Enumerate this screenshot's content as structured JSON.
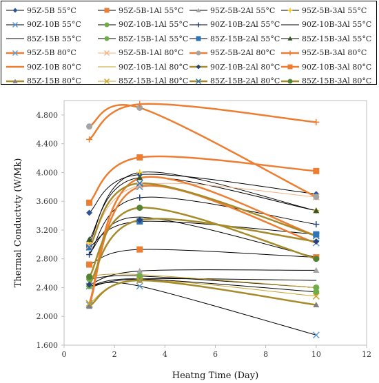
{
  "chart_data": {
    "type": "line",
    "xlabel": "Heatng Time (Day)",
    "ylabel": "Thermal Conductvty (W/Mk)",
    "xlim": [
      0,
      12
    ],
    "ylim": [
      1.6,
      5.0
    ],
    "xticks": [
      0,
      2,
      4,
      6,
      8,
      10,
      12
    ],
    "yticks": [
      1.6,
      2.0,
      2.4,
      2.8,
      3.2,
      3.6,
      4.0,
      4.4,
      4.8
    ],
    "ytick_labels": [
      "1.600",
      "2.000",
      "2.400",
      "2.800",
      "3.200",
      "3.600",
      "4.000",
      "4.400",
      "4.800"
    ],
    "grid": false,
    "legend": "top",
    "x": [
      1,
      3,
      10
    ],
    "series": [
      {
        "name": "95Z-5B 55°C",
        "values": [
          3.44,
          3.97,
          3.7
        ],
        "color": "#000000",
        "marker": "diamond",
        "marker_color": "#2F5597",
        "width": 1
      },
      {
        "name": "95Z-5B-1Al 55°C",
        "values": [
          2.72,
          2.93,
          2.82
        ],
        "color": "#000000",
        "marker": "square",
        "marker_color": "#ED7D31",
        "width": 1
      },
      {
        "name": "95Z-5B-2Al 55°C",
        "values": [
          2.44,
          2.63,
          2.64
        ],
        "color": "#000000",
        "marker": "triangle",
        "marker_color": "#A5A5A5",
        "width": 1
      },
      {
        "name": "95Z-5B-3Al 55°C",
        "values": [
          3.02,
          4.0,
          3.47
        ],
        "color": "#000000",
        "marker": "plus",
        "marker_color": "#FFC000",
        "width": 1
      },
      {
        "name": "90Z-10B 55°C",
        "values": [
          2.42,
          2.42,
          1.74
        ],
        "color": "#000000",
        "marker": "x",
        "marker_color": "#5B9BD5",
        "width": 1
      },
      {
        "name": "90Z-10B-1Al 55°C",
        "values": [
          2.52,
          2.56,
          2.4
        ],
        "color": "#000000",
        "marker": "circle",
        "marker_color": "#70AD47",
        "width": 1
      },
      {
        "name": "90Z-10B-2Al 55°C",
        "values": [
          2.86,
          3.65,
          3.28
        ],
        "color": "#000000",
        "marker": "plus",
        "marker_color": "#264478",
        "width": 1
      },
      {
        "name": "90Z-10B-3Al 55°C",
        "values": [
          2.4,
          2.52,
          2.5
        ],
        "color": "#000000",
        "marker": "none",
        "marker_color": "#000000",
        "width": 1
      },
      {
        "name": "85Z-15B 55°C",
        "values": [
          2.88,
          3.38,
          2.82
        ],
        "color": "#000000",
        "marker": "none",
        "marker_color": "#000000",
        "width": 1
      },
      {
        "name": "85Z-15B-1Al 55°C",
        "values": [
          2.42,
          2.52,
          2.34
        ],
        "color": "#000000",
        "marker": "circle",
        "marker_color": "#70AD47",
        "width": 1
      },
      {
        "name": "85Z-15B-2Al 55°C",
        "values": [
          2.96,
          3.32,
          3.14
        ],
        "color": "#000000",
        "marker": "square",
        "marker_color": "#2E75B6",
        "width": 1
      },
      {
        "name": "85Z-15B-3Al 55°C",
        "values": [
          3.07,
          3.93,
          3.47
        ],
        "color": "#000000",
        "marker": "triangle",
        "marker_color": "#375623",
        "width": 1
      },
      {
        "name": "95Z-5B 80°C",
        "values": [
          2.16,
          3.8,
          3.02
        ],
        "color": "#ED7D31",
        "marker": "x",
        "marker_color": "#5B9BD5",
        "width": 2.5
      },
      {
        "name": "95Z-5B-1Al 80°C",
        "values": [
          2.98,
          3.82,
          3.66
        ],
        "color": "#F4B183",
        "marker": "x",
        "marker_color": "#F4B183",
        "width": 1
      },
      {
        "name": "95Z-5B-2Al 80°C",
        "values": [
          4.64,
          4.9,
          3.66
        ],
        "color": "#ED7D31",
        "marker": "circle",
        "marker_color": "#A5A5A5",
        "width": 2.5
      },
      {
        "name": "95Z-5B-3Al 80°C",
        "values": [
          4.46,
          4.95,
          4.7
        ],
        "color": "#ED7D31",
        "marker": "plus",
        "marker_color": "#ED7D31",
        "width": 2.5
      },
      {
        "name": "90Z-10B 80°C",
        "values": [
          2.18,
          3.92,
          3.12
        ],
        "color": "#ED7D31",
        "marker": "none",
        "marker_color": "#ED7D31",
        "width": 2.5
      },
      {
        "name": "90Z-10B-1Al 80°C",
        "values": [
          2.56,
          2.58,
          2.4
        ],
        "color": "#C9A227",
        "marker": "none",
        "marker_color": "#C9A227",
        "width": 1
      },
      {
        "name": "90Z-10B-2Al 80°C",
        "values": [
          2.44,
          3.34,
          3.04
        ],
        "color": "#A68B2B",
        "marker": "diamond",
        "marker_color": "#264478",
        "width": 2.5
      },
      {
        "name": "90Z-10B-3Al 80°C",
        "values": [
          3.58,
          4.21,
          4.02
        ],
        "color": "#ED7D31",
        "marker": "square",
        "marker_color": "#ED7D31",
        "width": 2.5
      },
      {
        "name": "85Z-15B 80°C",
        "values": [
          2.14,
          2.5,
          2.16
        ],
        "color": "#A68B2B",
        "marker": "triangle",
        "marker_color": "#7F7F7F",
        "width": 2.5
      },
      {
        "name": "85Z-15B-1Al 80°C",
        "values": [
          2.18,
          2.5,
          2.28
        ],
        "color": "#C9A227",
        "marker": "x",
        "marker_color": "#C9A227",
        "width": 1
      },
      {
        "name": "85Z-15B-2Al 80°C",
        "values": [
          2.96,
          3.85,
          3.12
        ],
        "color": "#A68B2B",
        "marker": "x",
        "marker_color": "#2E75B6",
        "width": 2.5
      },
      {
        "name": "85Z-15B-3Al 80°C",
        "values": [
          2.55,
          3.51,
          2.8
        ],
        "color": "#A68B2B",
        "marker": "circle",
        "marker_color": "#548235",
        "width": 2.5
      }
    ]
  }
}
